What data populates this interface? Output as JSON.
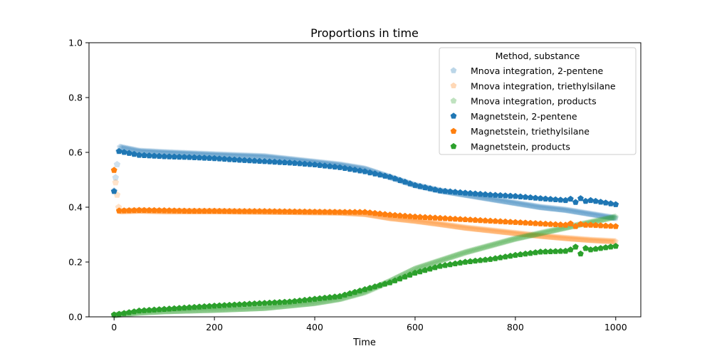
{
  "chart_data": {
    "type": "scatter",
    "title": "Proportions in time",
    "xlabel": "Time",
    "ylabel": "",
    "xlim": [
      -50,
      1050
    ],
    "ylim": [
      0,
      1
    ],
    "xticks": [
      0,
      200,
      400,
      600,
      800,
      1000
    ],
    "yticks": [
      0.0,
      0.2,
      0.4,
      0.6,
      0.8,
      1.0
    ],
    "xtick_labels": [
      "0",
      "200",
      "400",
      "600",
      "800",
      "1000"
    ],
    "ytick_labels": [
      "0.0",
      "0.2",
      "0.4",
      "0.6",
      "0.8",
      "1.0"
    ],
    "grid": false,
    "legend": {
      "title": "Method, substance",
      "placement": "top-right"
    },
    "colors": {
      "blue": "#1f77b4",
      "orange": "#ff7f0e",
      "green": "#2ca02c"
    },
    "series": [
      {
        "name": "Mnova integration, 2-pentene",
        "color": "#1f77b4",
        "faded": true,
        "x": [
          0,
          10,
          50,
          100,
          200,
          300,
          400,
          450,
          500,
          550,
          600,
          650,
          700,
          750,
          800,
          850,
          900,
          950,
          1000
        ],
        "values": [
          0.46,
          0.62,
          0.605,
          0.6,
          0.592,
          0.585,
          0.565,
          0.555,
          0.54,
          0.51,
          0.48,
          0.46,
          0.445,
          0.43,
          0.415,
          0.4,
          0.39,
          0.375,
          0.36
        ]
      },
      {
        "name": "Mnova integration, triethylsilane",
        "color": "#ff7f0e",
        "faded": true,
        "x": [
          0,
          10,
          50,
          100,
          200,
          300,
          400,
          450,
          500,
          550,
          600,
          650,
          700,
          750,
          800,
          850,
          900,
          950,
          1000
        ],
        "values": [
          0.535,
          0.385,
          0.387,
          0.385,
          0.385,
          0.383,
          0.381,
          0.38,
          0.375,
          0.36,
          0.35,
          0.338,
          0.325,
          0.315,
          0.305,
          0.295,
          0.287,
          0.28,
          0.275
        ]
      },
      {
        "name": "Mnova integration, products",
        "color": "#2ca02c",
        "faded": true,
        "x": [
          0,
          10,
          50,
          100,
          200,
          300,
          400,
          450,
          500,
          550,
          600,
          650,
          700,
          750,
          800,
          850,
          900,
          950,
          1000
        ],
        "values": [
          0.005,
          0.008,
          0.015,
          0.02,
          0.025,
          0.032,
          0.05,
          0.065,
          0.09,
          0.13,
          0.175,
          0.205,
          0.235,
          0.26,
          0.285,
          0.305,
          0.325,
          0.345,
          0.365
        ]
      },
      {
        "name": "Magnetstein, 2-pentene",
        "color": "#1f77b4",
        "faded": false,
        "x": [
          0,
          10,
          50,
          100,
          150,
          200,
          250,
          300,
          350,
          400,
          450,
          500,
          550,
          600,
          650,
          700,
          750,
          800,
          850,
          900,
          910,
          920,
          930,
          940,
          950,
          1000
        ],
        "values": [
          0.458,
          0.604,
          0.59,
          0.585,
          0.582,
          0.578,
          0.572,
          0.567,
          0.562,
          0.555,
          0.545,
          0.53,
          0.51,
          0.48,
          0.46,
          0.452,
          0.445,
          0.44,
          0.432,
          0.425,
          0.43,
          0.418,
          0.432,
          0.422,
          0.425,
          0.41
        ]
      },
      {
        "name": "Magnetstein, triethylsilane",
        "color": "#ff7f0e",
        "faded": false,
        "x": [
          0,
          10,
          50,
          100,
          150,
          200,
          250,
          300,
          350,
          400,
          450,
          500,
          550,
          600,
          650,
          700,
          750,
          800,
          850,
          900,
          910,
          920,
          930,
          940,
          950,
          1000
        ],
        "values": [
          0.535,
          0.387,
          0.389,
          0.388,
          0.386,
          0.386,
          0.385,
          0.385,
          0.384,
          0.383,
          0.382,
          0.382,
          0.372,
          0.365,
          0.36,
          0.355,
          0.35,
          0.345,
          0.34,
          0.335,
          0.34,
          0.33,
          0.338,
          0.335,
          0.335,
          0.33
        ]
      },
      {
        "name": "Magnetstein, products",
        "color": "#2ca02c",
        "faded": false,
        "x": [
          0,
          10,
          50,
          100,
          150,
          200,
          250,
          300,
          350,
          400,
          450,
          500,
          550,
          600,
          650,
          700,
          750,
          800,
          850,
          900,
          910,
          920,
          930,
          940,
          950,
          1000
        ],
        "values": [
          0.008,
          0.01,
          0.022,
          0.028,
          0.034,
          0.04,
          0.045,
          0.05,
          0.055,
          0.065,
          0.075,
          0.1,
          0.125,
          0.16,
          0.185,
          0.2,
          0.21,
          0.225,
          0.237,
          0.24,
          0.245,
          0.255,
          0.23,
          0.25,
          0.245,
          0.258
        ]
      }
    ]
  }
}
